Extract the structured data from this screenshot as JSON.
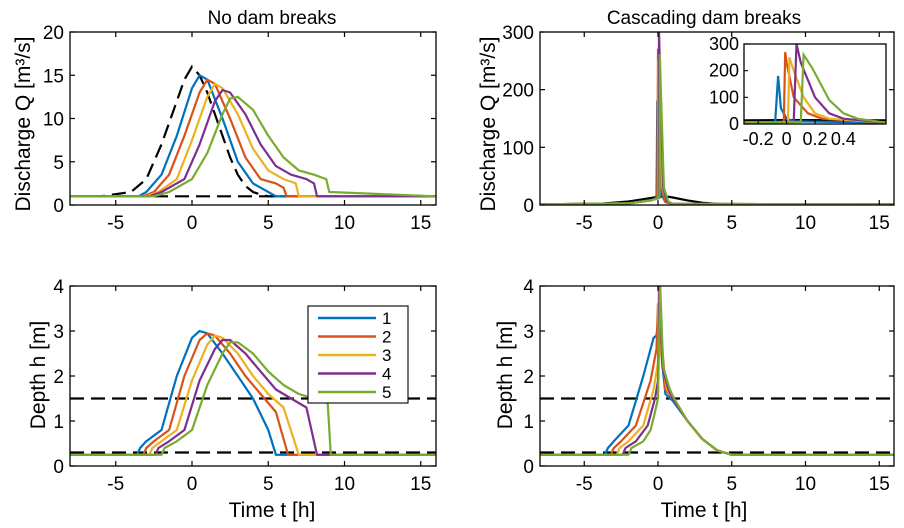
{
  "colors": {
    "s1": "#0072BD",
    "s2": "#D95319",
    "s3": "#EDB120",
    "s4": "#7E2F8E",
    "s5": "#77AC30",
    "ref": "#000000"
  },
  "chart_data": [
    {
      "type": "line",
      "title": "No dam breaks",
      "xlabel": "",
      "ylabel": "Discharge Q [m³/s]",
      "xlim": [
        -8,
        16
      ],
      "ylim": [
        0,
        20
      ],
      "xticks": [
        -5,
        0,
        5,
        10,
        15
      ],
      "yticks": [
        0,
        5,
        10,
        15,
        20
      ],
      "reference_lines": [
        {
          "style": "dashed",
          "x": [
            -8,
            -6,
            -4,
            -3,
            -2,
            -1,
            -0.5,
            0,
            0.5,
            1,
            2,
            2.5,
            3,
            3.5,
            4,
            4.5,
            5,
            6,
            10,
            16
          ],
          "y": [
            1,
            1,
            1.5,
            3,
            7,
            12,
            14.5,
            16,
            15,
            13,
            8,
            5.5,
            3.5,
            2.2,
            1.5,
            1.2,
            1,
            1,
            1,
            1
          ]
        },
        {
          "style": "dashed",
          "x": [
            -8,
            16
          ],
          "y": [
            1,
            1
          ]
        }
      ],
      "series": [
        {
          "name": "1",
          "x": [
            -8,
            -3.5,
            -3,
            -2,
            -1,
            0,
            0.5,
            1,
            2,
            3,
            4,
            4.5,
            5,
            5.5,
            16
          ],
          "y": [
            1,
            1,
            1.5,
            3.5,
            8,
            13.5,
            15,
            14.5,
            10,
            5,
            2.5,
            2,
            1.5,
            1,
            1
          ]
        },
        {
          "name": "2",
          "x": [
            -8,
            -3.2,
            -2.5,
            -1.5,
            -0.5,
            0.5,
            1,
            1.5,
            2.5,
            3.5,
            4.5,
            5.5,
            6,
            6.2,
            16
          ],
          "y": [
            1,
            1,
            1.5,
            3.5,
            8,
            13,
            14.5,
            14,
            10,
            5.5,
            3,
            2.5,
            2,
            1,
            1
          ]
        },
        {
          "name": "3",
          "x": [
            -8,
            -3,
            -2.2,
            -1,
            0,
            1,
            1.5,
            2,
            3,
            4,
            5,
            6,
            6.8,
            7,
            16
          ],
          "y": [
            1,
            1,
            1.5,
            3,
            7.5,
            12.5,
            14,
            13.5,
            10.5,
            6.5,
            4,
            3,
            2.5,
            1,
            1
          ]
        },
        {
          "name": "4",
          "x": [
            -8,
            -2.8,
            -2,
            -0.5,
            0.5,
            1.5,
            2,
            2.5,
            3.5,
            4.5,
            5.5,
            6.5,
            7.5,
            8,
            8.2,
            16
          ],
          "y": [
            1,
            1,
            1.5,
            3,
            7,
            12,
            13.3,
            13,
            10.5,
            7,
            4.5,
            3.5,
            3,
            2.5,
            1,
            1
          ]
        },
        {
          "name": "5",
          "x": [
            -8,
            -2.5,
            -1.5,
            0,
            1,
            2,
            2.5,
            3,
            4,
            5,
            6,
            7,
            8,
            8.8,
            9,
            16
          ],
          "y": [
            1,
            1,
            1.5,
            3,
            6,
            10.5,
            12.3,
            12.5,
            11,
            8,
            5.5,
            4,
            3.5,
            3,
            1.5,
            1
          ]
        }
      ]
    },
    {
      "type": "line",
      "title": "Cascading dam breaks",
      "xlabel": "",
      "ylabel": "Discharge Q [m³/s]",
      "xlim": [
        -8,
        16
      ],
      "ylim": [
        0,
        300
      ],
      "xticks": [
        -5,
        0,
        5,
        10,
        15
      ],
      "yticks": [
        0,
        100,
        200,
        300
      ],
      "reference_lines": [
        {
          "style": "solid",
          "x": [
            -8,
            -4,
            -2,
            -1,
            0,
            0.5,
            1,
            2,
            3,
            4,
            5,
            16
          ],
          "y": [
            1,
            2,
            6,
            10,
            14,
            15,
            13,
            8,
            4,
            2,
            1,
            1
          ]
        }
      ],
      "series": [
        {
          "name": "1",
          "x": [
            -8,
            -2,
            -0.5,
            -0.1,
            -0.05,
            0.2,
            0.5,
            1,
            16
          ],
          "y": [
            1,
            3,
            8,
            12,
            180,
            20,
            5,
            2,
            1
          ]
        },
        {
          "name": "2",
          "x": [
            -8,
            -2,
            -0.5,
            -0.05,
            0,
            0.25,
            0.5,
            1,
            16
          ],
          "y": [
            1,
            3,
            8,
            12,
            270,
            30,
            5,
            2,
            1
          ]
        },
        {
          "name": "3",
          "x": [
            -8,
            -2,
            -0.5,
            0,
            0.03,
            0.3,
            0.6,
            1,
            16
          ],
          "y": [
            1,
            3,
            8,
            12,
            250,
            30,
            6,
            2,
            1
          ]
        },
        {
          "name": "4",
          "x": [
            -8,
            -2,
            -0.5,
            0.05,
            0.07,
            0.35,
            0.6,
            1,
            16
          ],
          "y": [
            1,
            3,
            8,
            12,
            300,
            30,
            6,
            2,
            1
          ]
        },
        {
          "name": "5",
          "x": [
            -8,
            -2,
            -0.5,
            0.1,
            0.12,
            0.4,
            0.7,
            1,
            16
          ],
          "y": [
            1,
            3,
            8,
            12,
            260,
            30,
            6,
            2,
            1
          ]
        }
      ],
      "inset": {
        "xlim": [
          -0.3,
          0.7
        ],
        "ylim": [
          0,
          300
        ],
        "xticks": [
          -0.2,
          0,
          0.2,
          0.4
        ],
        "xtick_labels": [
          "-0.2",
          "0",
          "0.2",
          "0.4"
        ],
        "yticks": [
          0,
          100,
          200,
          300
        ],
        "series": [
          {
            "name": "1",
            "x": [
              -0.3,
              -0.08,
              -0.06,
              -0.04,
              0,
              0.05,
              0.7
            ],
            "y": [
              5,
              8,
              180,
              60,
              20,
              10,
              5
            ]
          },
          {
            "name": "2",
            "x": [
              -0.3,
              -0.02,
              -0.01,
              0,
              0.05,
              0.15,
              0.25,
              0.7
            ],
            "y": [
              5,
              8,
              270,
              230,
              100,
              40,
              20,
              5
            ]
          },
          {
            "name": "3",
            "x": [
              -0.3,
              0.01,
              0.02,
              0.05,
              0.12,
              0.2,
              0.3,
              0.7
            ],
            "y": [
              5,
              8,
              250,
              200,
              100,
              40,
              20,
              5
            ]
          },
          {
            "name": "4",
            "x": [
              -0.3,
              0.05,
              0.07,
              0.1,
              0.2,
              0.3,
              0.4,
              0.7
            ],
            "y": [
              5,
              8,
              300,
              230,
              100,
              40,
              20,
              5
            ]
          },
          {
            "name": "5",
            "x": [
              -0.3,
              0.1,
              0.12,
              0.18,
              0.3,
              0.4,
              0.5,
              0.7
            ],
            "y": [
              5,
              8,
              260,
              210,
              90,
              40,
              20,
              5
            ]
          }
        ],
        "reference_line": {
          "style": "solid",
          "x": [
            -0.3,
            0,
            0.1,
            0.7
          ],
          "y": [
            14,
            15,
            15,
            14
          ]
        }
      }
    },
    {
      "type": "line",
      "title": "",
      "xlabel": "Time t [h]",
      "ylabel": "Depth h [m]",
      "xlim": [
        -8,
        16
      ],
      "ylim": [
        0,
        4
      ],
      "xticks": [
        -5,
        0,
        5,
        10,
        15
      ],
      "yticks": [
        0,
        1,
        2,
        3,
        4
      ],
      "legend_placement": "top-right",
      "reference_lines": [
        {
          "style": "dashed",
          "x": [
            -8,
            16
          ],
          "y": [
            1.5,
            1.5
          ]
        },
        {
          "style": "dashed",
          "x": [
            -8,
            16
          ],
          "y": [
            0.3,
            0.3
          ]
        }
      ],
      "series": [
        {
          "name": "1",
          "x": [
            -8,
            -3.6,
            -3.4,
            -3,
            -2,
            -1,
            0,
            0.5,
            1,
            2,
            3,
            4,
            5,
            5.5,
            16
          ],
          "y": [
            0.25,
            0.25,
            0.4,
            0.55,
            0.8,
            2,
            2.85,
            3,
            2.95,
            2.5,
            2,
            1.5,
            0.8,
            0.25,
            0.25
          ]
        },
        {
          "name": "2",
          "x": [
            -8,
            -3.2,
            -3,
            -2.5,
            -1.5,
            -0.5,
            0.5,
            1,
            1.5,
            2.5,
            3.5,
            4.5,
            5.5,
            6.3,
            16
          ],
          "y": [
            0.25,
            0.25,
            0.4,
            0.55,
            0.8,
            2,
            2.8,
            2.95,
            2.9,
            2.5,
            2,
            1.6,
            1.2,
            0.25,
            0.25
          ]
        },
        {
          "name": "3",
          "x": [
            -8,
            -2.8,
            -2.6,
            -2,
            -1,
            0,
            1,
            1.5,
            2,
            3,
            4,
            5,
            6,
            7,
            16
          ],
          "y": [
            0.25,
            0.25,
            0.4,
            0.55,
            0.8,
            1.9,
            2.7,
            2.9,
            2.85,
            2.5,
            2,
            1.6,
            1.3,
            0.25,
            0.25
          ]
        },
        {
          "name": "4",
          "x": [
            -8,
            -2.4,
            -2.2,
            -1.5,
            -0.5,
            0.5,
            1.5,
            2,
            2.5,
            3.5,
            4.5,
            5.5,
            6.5,
            7.5,
            8.2,
            16
          ],
          "y": [
            0.25,
            0.25,
            0.4,
            0.55,
            0.8,
            1.9,
            2.6,
            2.8,
            2.8,
            2.5,
            2.1,
            1.7,
            1.5,
            1.3,
            0.25,
            0.25
          ]
        },
        {
          "name": "5",
          "x": [
            -8,
            -2,
            -1.8,
            -1,
            0,
            1,
            2,
            2.5,
            3,
            4,
            5,
            6,
            7,
            8,
            8.9,
            9.1,
            16
          ],
          "y": [
            0.25,
            0.25,
            0.4,
            0.55,
            0.8,
            1.8,
            2.5,
            2.75,
            2.75,
            2.5,
            2.1,
            1.8,
            1.6,
            1.5,
            1.4,
            0.25,
            0.25
          ]
        }
      ]
    },
    {
      "type": "line",
      "title": "",
      "xlabel": "Time t [h]",
      "ylabel": "Depth h [m]",
      "xlim": [
        -8,
        16
      ],
      "ylim": [
        0,
        4
      ],
      "xticks": [
        -5,
        0,
        5,
        10,
        15
      ],
      "yticks": [
        0,
        1,
        2,
        3,
        4
      ],
      "reference_lines": [
        {
          "style": "dashed",
          "x": [
            -8,
            16
          ],
          "y": [
            1.5,
            1.5
          ]
        },
        {
          "style": "dashed",
          "x": [
            -8,
            16
          ],
          "y": [
            0.3,
            0.3
          ]
        }
      ],
      "series": [
        {
          "name": "1",
          "x": [
            -8,
            -3.6,
            -3.4,
            -3,
            -2,
            -1,
            -0.3,
            -0.1,
            0,
            0.5,
            1,
            2,
            3,
            4,
            5,
            16
          ],
          "y": [
            0.25,
            0.25,
            0.4,
            0.55,
            0.9,
            2,
            2.85,
            2.9,
            3.2,
            1.6,
            1.45,
            1.0,
            0.6,
            0.35,
            0.25,
            0.25
          ]
        },
        {
          "name": "2",
          "x": [
            -8,
            -3.2,
            -3,
            -2.5,
            -1.5,
            -0.5,
            -0.1,
            0,
            0.1,
            0.5,
            1,
            2,
            3,
            4,
            5,
            16
          ],
          "y": [
            0.25,
            0.25,
            0.4,
            0.55,
            0.9,
            1.9,
            2.6,
            3.6,
            3.5,
            1.7,
            1.5,
            1.0,
            0.6,
            0.35,
            0.25,
            0.25
          ]
        },
        {
          "name": "3",
          "x": [
            -8,
            -2.8,
            -2.6,
            -2,
            -1,
            -0.3,
            0,
            0.05,
            0.2,
            0.6,
            1,
            2,
            3,
            4,
            5,
            16
          ],
          "y": [
            0.25,
            0.25,
            0.4,
            0.55,
            0.9,
            1.7,
            2.3,
            4.0,
            2.5,
            1.7,
            1.5,
            1.0,
            0.6,
            0.35,
            0.25,
            0.25
          ]
        },
        {
          "name": "4",
          "x": [
            -8,
            -2.4,
            -2.2,
            -1.5,
            -0.7,
            -0.2,
            0,
            0.1,
            0.3,
            0.7,
            1,
            2,
            3,
            4,
            5,
            16
          ],
          "y": [
            0.25,
            0.25,
            0.4,
            0.55,
            0.9,
            1.5,
            1.9,
            4.0,
            2.2,
            1.7,
            1.5,
            1.0,
            0.6,
            0.35,
            0.25,
            0.25
          ]
        },
        {
          "name": "5",
          "x": [
            -8,
            -2,
            -1.8,
            -1,
            -0.5,
            -0.2,
            0,
            0.15,
            0.35,
            0.8,
            1.1,
            2,
            3,
            4,
            5,
            16
          ],
          "y": [
            0.25,
            0.25,
            0.4,
            0.55,
            0.8,
            1.2,
            1.5,
            4.0,
            2.2,
            1.7,
            1.5,
            1.0,
            0.6,
            0.35,
            0.25,
            0.25
          ]
        }
      ]
    }
  ]
}
